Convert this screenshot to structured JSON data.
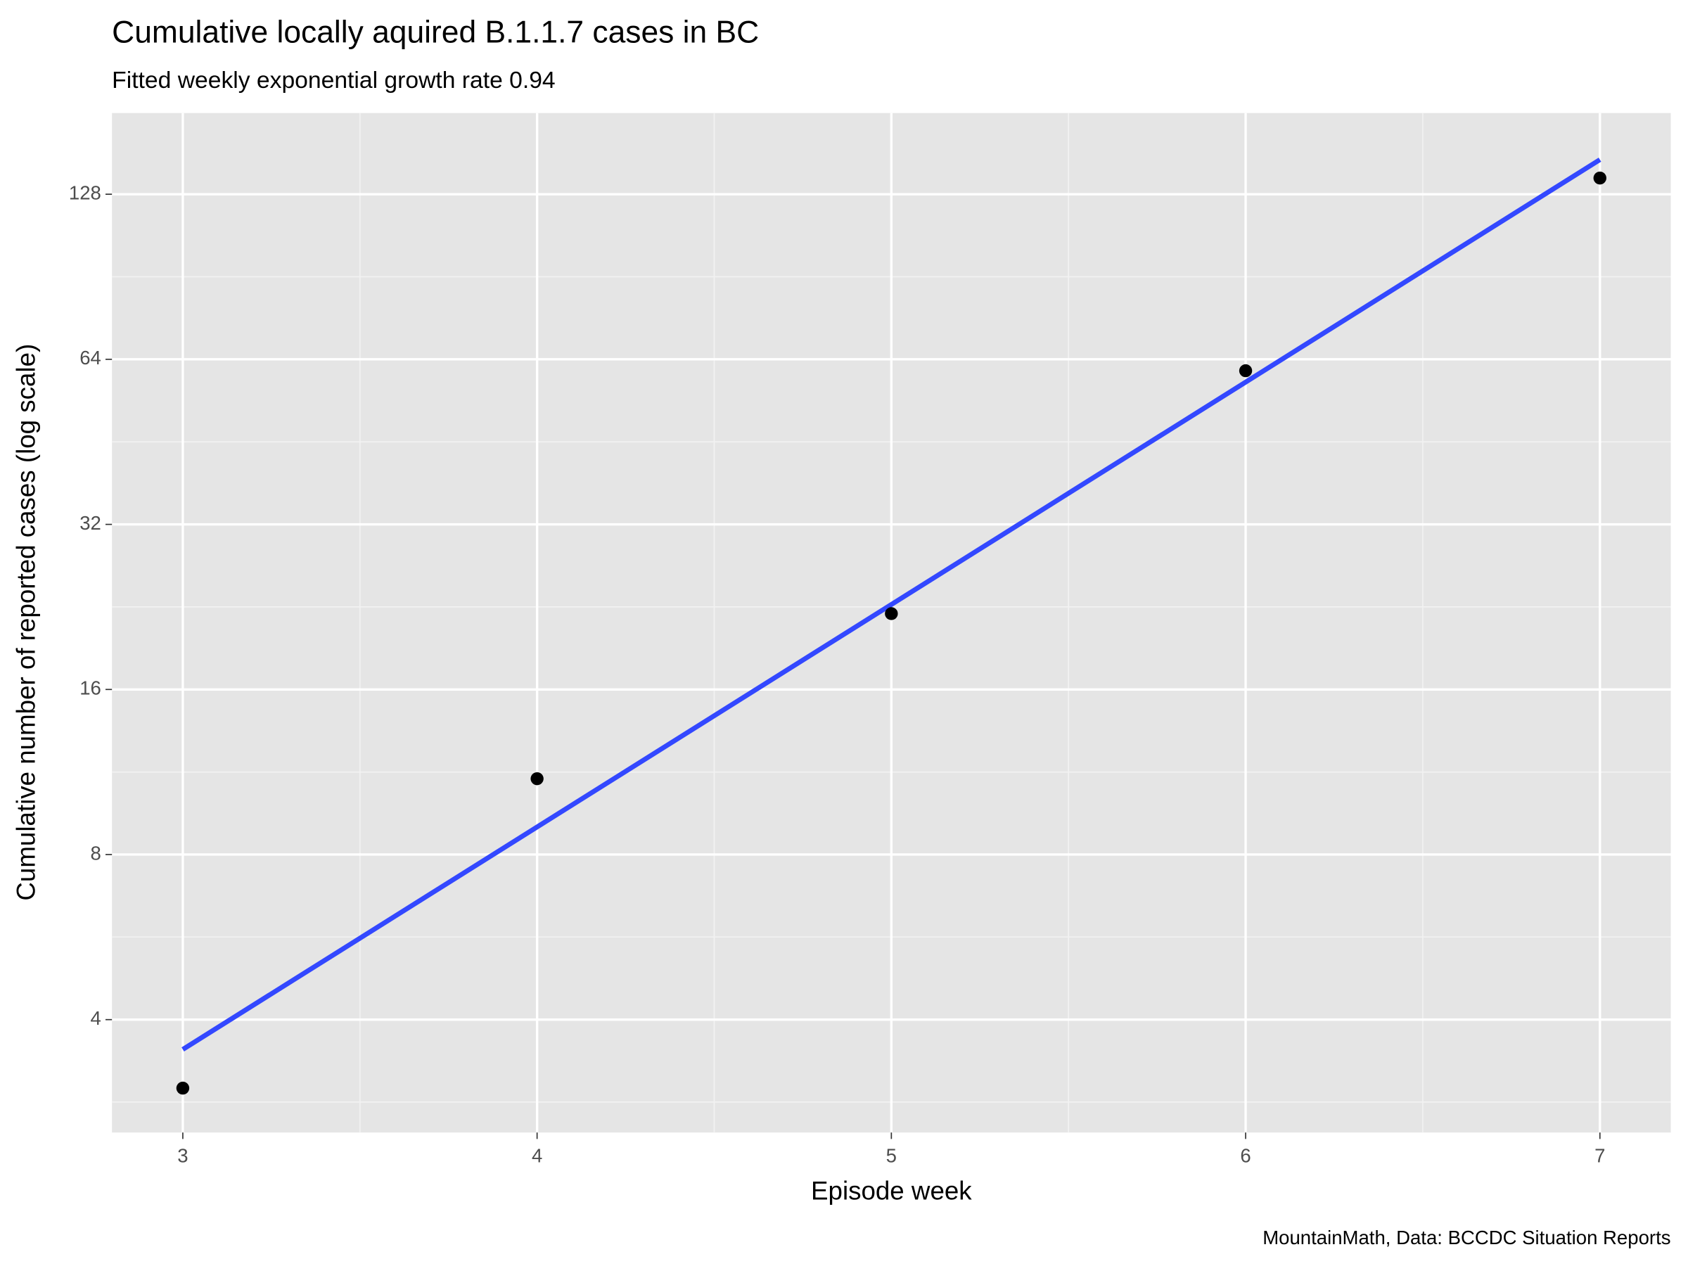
{
  "chart_data": {
    "type": "scatter",
    "title": "Cumulative locally aquired B.1.1.7 cases in BC",
    "subtitle": "Fitted weekly exponential growth rate 0.94",
    "x_label": "Episode week",
    "y_label": "Cumulative number of reported cases (log scale)",
    "caption": "MountainMath, Data: BCCDC Situation Reports",
    "x": [
      3,
      4,
      5,
      6,
      7
    ],
    "values": [
      3,
      11,
      22,
      61,
      137
    ],
    "color": "#000000",
    "fit": {
      "x": [
        3,
        7
      ],
      "values": [
        3.53,
        148
      ],
      "color": "#3348ff"
    },
    "ylog": true,
    "xlim": [
      2.8,
      7.2
    ],
    "ylim": [
      2.49,
      180
    ],
    "xticks": [
      3,
      4,
      5,
      6,
      7
    ],
    "yticks": [
      4,
      8,
      16,
      32,
      64,
      128
    ],
    "xminor": [
      3.5,
      4.5,
      5.5,
      6.5
    ],
    "yminor": [
      2.83,
      5.66,
      11.31,
      22.63,
      45.25,
      90.51
    ],
    "grid": true
  }
}
